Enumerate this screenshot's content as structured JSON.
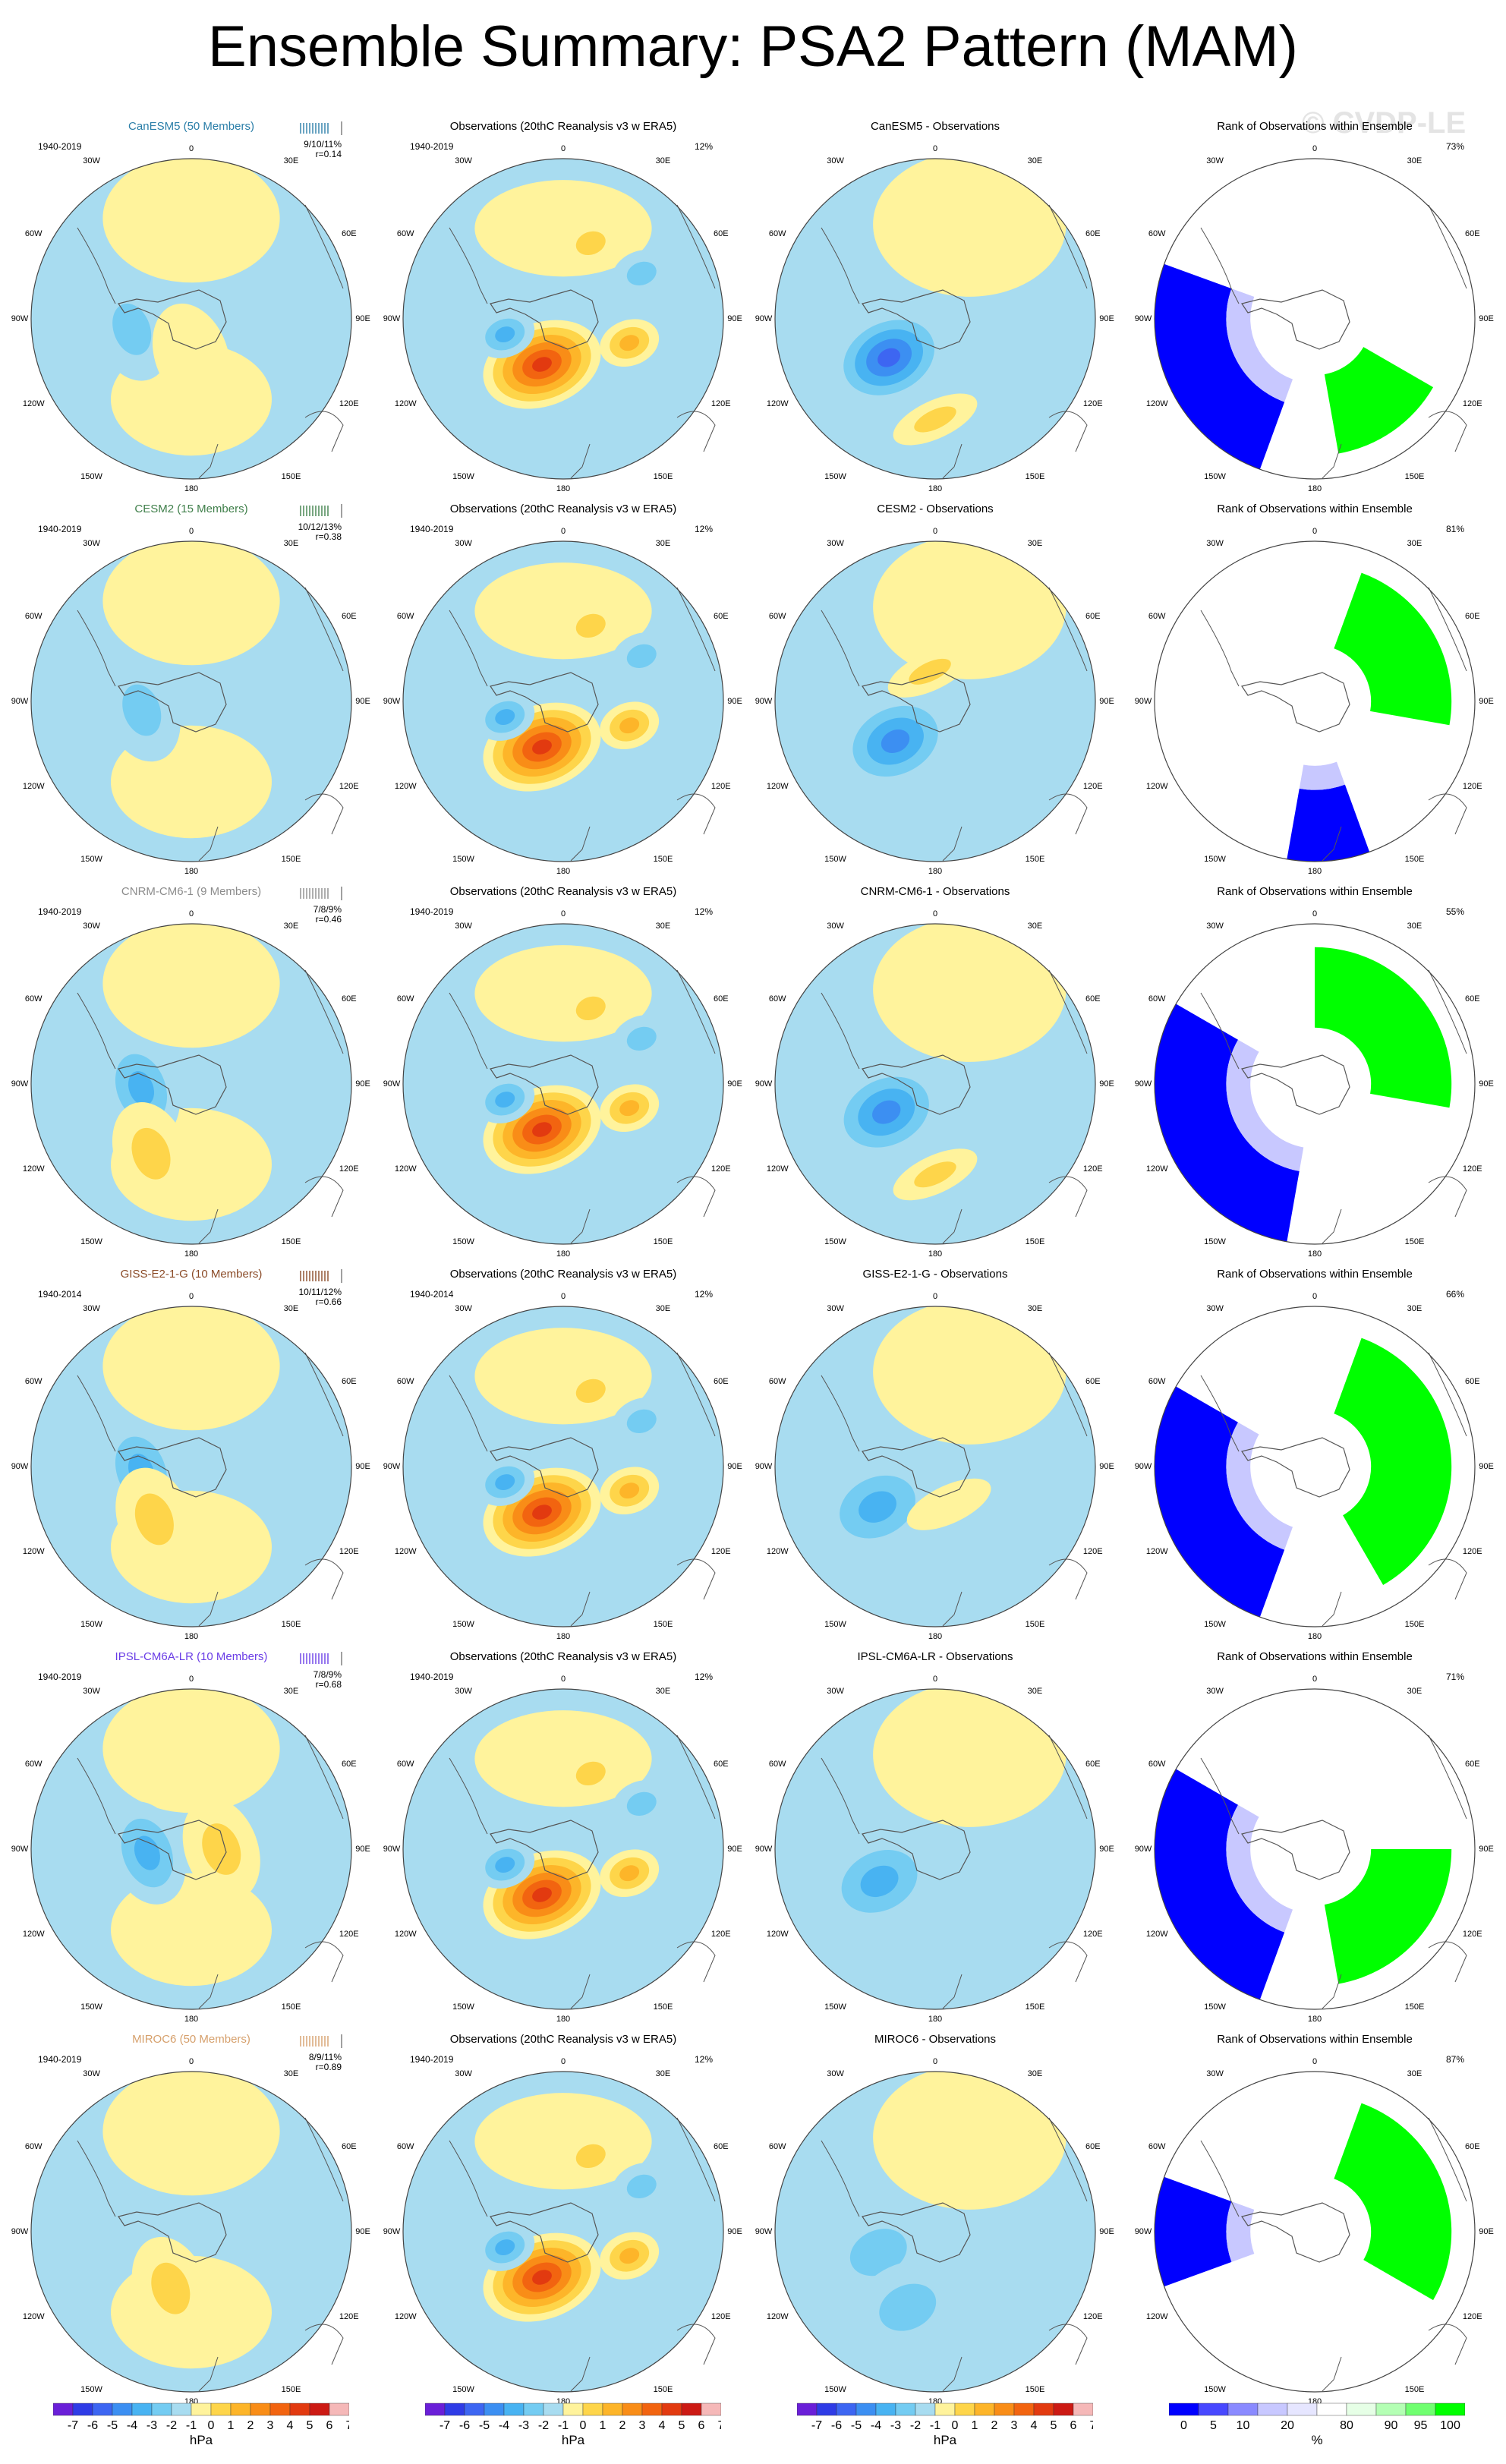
{
  "title": "Ensemble Summary: PSA2 Pattern (MAM)",
  "watermark": "© CVDP-LE",
  "colors": {
    "neg": [
      "#6a1fd8",
      "#2f3ce6",
      "#3d66f2",
      "#3c8ff2",
      "#48b3f2",
      "#74ccf2",
      "#a8dcf0"
    ],
    "pos": [
      "#fff39c",
      "#fed54a",
      "#fdb529",
      "#f98d17",
      "#f26410",
      "#e23a10",
      "#cc1a14",
      "#f5b8b8"
    ],
    "rank": [
      "#0000ff",
      "#4848ff",
      "#8a8aff",
      "#c8c8ff",
      "#e6e6ff",
      "#ffffff",
      "#e6ffe6",
      "#b4ffb4",
      "#70ff70",
      "#00ff00"
    ],
    "model_name_colors": [
      "#2a7ea8",
      "#3f7f4a",
      "#8c8c8c",
      "#8a4a26",
      "#6a3de6",
      "#d6a06c"
    ]
  },
  "obs_title": "Observations (20thC Reanalysis v3 w ERA5)",
  "rank_title": "Rank of Observations within Ensemble",
  "lon_labels": {
    "top": "0",
    "bottom": "180",
    "left_mid": "90W",
    "right_mid": "90E",
    "upper_left": "30W",
    "upper_right": "30E",
    "left_upper": "60W",
    "right_upper": "60E",
    "left_lower": "120W",
    "right_lower": "120E",
    "lower_left": "150W",
    "lower_right": "150E"
  },
  "rows": [
    {
      "model_title": "CanESM5 (50 Members)",
      "model_years": "1940-2019",
      "spread": "9/10/11%",
      "r": "r=0.14",
      "obs_years": "1940-2019",
      "obs_pct": "12%",
      "diff_title": "CanESM5 - Observations",
      "rank_pct": "73%"
    },
    {
      "model_title": "CESM2 (15 Members)",
      "model_years": "1940-2019",
      "spread": "10/12/13%",
      "r": "r=0.38",
      "obs_years": "1940-2019",
      "obs_pct": "12%",
      "diff_title": "CESM2 - Observations",
      "rank_pct": "81%"
    },
    {
      "model_title": "CNRM-CM6-1 (9 Members)",
      "model_years": "1940-2019",
      "spread": "7/8/9%",
      "r": "r=0.46",
      "obs_years": "1940-2019",
      "obs_pct": "12%",
      "diff_title": "CNRM-CM6-1 - Observations",
      "rank_pct": "55%"
    },
    {
      "model_title": "GISS-E2-1-G (10 Members)",
      "model_years": "1940-2014",
      "spread": "10/11/12%",
      "r": "r=0.66",
      "obs_years": "1940-2014",
      "obs_pct": "12%",
      "diff_title": "GISS-E2-1-G - Observations",
      "rank_pct": "66%"
    },
    {
      "model_title": "IPSL-CM6A-LR (10 Members)",
      "model_years": "1940-2019",
      "spread": "7/8/9%",
      "r": "r=0.68",
      "obs_years": "1940-2019",
      "obs_pct": "12%",
      "diff_title": "IPSL-CM6A-LR - Observations",
      "rank_pct": "71%"
    },
    {
      "model_title": "MIROC6 (50 Members)",
      "model_years": "1940-2019",
      "spread": "8/9/11%",
      "r": "r=0.89",
      "obs_years": "1940-2019",
      "obs_pct": "12%",
      "diff_title": "MIROC6 - Observations",
      "rank_pct": "87%"
    }
  ],
  "colorbars": {
    "hpa_ticks": [
      "-7",
      "-6",
      "-5",
      "-4",
      "-3",
      "-2",
      "-1",
      "0",
      "1",
      "2",
      "3",
      "4",
      "5",
      "6",
      "7"
    ],
    "hpa_unit": "hPa",
    "rank_ticks": [
      "0",
      "5",
      "10",
      "20",
      "80",
      "90",
      "95",
      "100"
    ],
    "rank_unit": "%"
  },
  "chart_data": {
    "type": "heatmap",
    "description_grid": "6 rows x 4 columns of south polar stereographic maps",
    "columns": [
      "model ensemble mean",
      "observations",
      "model - observations",
      "rank of observations within ensemble"
    ],
    "units": [
      "hPa",
      "hPa",
      "hPa",
      "%"
    ],
    "hpa_levels": [
      -7,
      -6,
      -5,
      -4,
      -3,
      -2,
      -1,
      0,
      1,
      2,
      3,
      4,
      5,
      6,
      7
    ],
    "rank_levels": [
      0,
      5,
      10,
      20,
      80,
      90,
      95,
      100
    ],
    "obs_field": {
      "anomalies": [
        {
          "lon": 205,
          "lat": -65,
          "value": 5.5
        },
        {
          "lon": 255,
          "lat": -60,
          "value": -2.5
        },
        {
          "lon": 110,
          "lat": -55,
          "value": 2.5
        },
        {
          "lon": 20,
          "lat": -50,
          "value": 1.5
        },
        {
          "lon": 60,
          "lat": -45,
          "value": -1.2
        }
      ]
    },
    "rows": [
      {
        "model": "CanESM5",
        "model_field": [
          {
            "lon": 260,
            "lat": -60,
            "value": -2.0
          },
          {
            "lon": 180,
            "lat": -72,
            "value": 0.5
          }
        ],
        "diff_field": [
          {
            "lon": 230,
            "lat": -60,
            "value": -5.0
          },
          {
            "lon": 180,
            "lat": -40,
            "value": 1.5
          }
        ],
        "rank": {
          "low_lon": [
            200,
            290
          ],
          "high_lon": [
            120,
            170
          ]
        }
      },
      {
        "model": "CESM2",
        "model_field": [
          {
            "lon": 260,
            "lat": -65,
            "value": -2.0
          }
        ],
        "diff_field": [
          {
            "lon": 225,
            "lat": -62,
            "value": -4.0
          },
          {
            "lon": 350,
            "lat": -75,
            "value": 1.2
          }
        ],
        "rank": {
          "low_lon": [
            160,
            190
          ],
          "high_lon": [
            20,
            100
          ]
        }
      },
      {
        "model": "CNRM-CM6-1",
        "model_field": [
          {
            "lon": 265,
            "lat": -65,
            "value": -2.5
          },
          {
            "lon": 210,
            "lat": -50,
            "value": 2.0
          }
        ],
        "diff_field": [
          {
            "lon": 240,
            "lat": -62,
            "value": -4.0
          },
          {
            "lon": 180,
            "lat": -45,
            "value": 1.5
          }
        ],
        "rank": {
          "low_lon": [
            190,
            300
          ],
          "high_lon": [
            0,
            100
          ]
        }
      },
      {
        "model": "GISS-E2-1-G",
        "model_field": [
          {
            "lon": 265,
            "lat": -65,
            "value": -3.0
          },
          {
            "lon": 215,
            "lat": -58,
            "value": 2.0
          }
        ],
        "diff_field": [
          {
            "lon": 235,
            "lat": -55,
            "value": -3.0
          },
          {
            "lon": 160,
            "lat": -70,
            "value": 1.0
          }
        ],
        "rank": {
          "low_lon": [
            200,
            300
          ],
          "high_lon": [
            20,
            150
          ]
        }
      },
      {
        "model": "IPSL-CM6A-LR",
        "model_field": [
          {
            "lon": 265,
            "lat": -68,
            "value": -3.0
          },
          {
            "lon": 90,
            "lat": -75,
            "value": 1.2
          }
        ],
        "diff_field": [
          {
            "lon": 240,
            "lat": -58,
            "value": -3.0
          }
        ],
        "rank": {
          "low_lon": [
            200,
            300
          ],
          "high_lon": [
            90,
            170
          ]
        }
      },
      {
        "model": "MIROC6",
        "model_field": [
          {
            "lon": 200,
            "lat": -60,
            "value": 2.0
          }
        ],
        "diff_field": [
          {
            "lon": 250,
            "lat": -60,
            "value": -2.0
          },
          {
            "lon": 200,
            "lat": -50,
            "value": -1.5
          }
        ],
        "rank": {
          "low_lon": [
            250,
            290
          ],
          "high_lon": [
            20,
            120
          ]
        }
      }
    ]
  }
}
